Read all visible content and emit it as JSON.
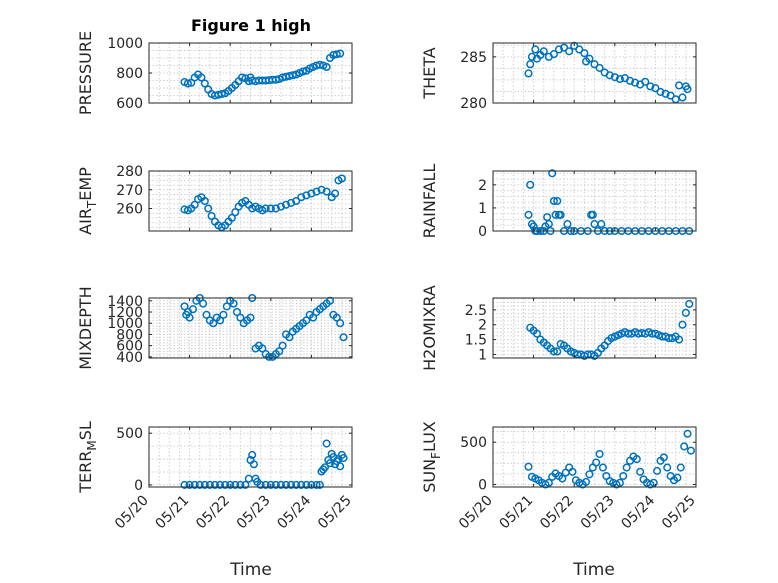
{
  "figure": {
    "title": "Figure 1 high",
    "xlabel": "Time",
    "date_ticks": [
      "05/20",
      "05/21",
      "05/22",
      "05/23",
      "05/24",
      "05/25"
    ]
  },
  "colors": {
    "series": "#0072bd",
    "axes": "#262626",
    "grid": "#d0d0d0"
  },
  "chart_data": [
    {
      "type": "scatter",
      "ylabel": "PRESSURE",
      "xlim": [
        "05/20",
        "05/25"
      ],
      "ylim": [
        600,
        1000
      ],
      "yticks": [
        600,
        800,
        1000
      ],
      "ytick_labels": [
        "600",
        "800",
        "1000"
      ],
      "grid": true,
      "show_xticklabels": false,
      "x": [
        "05/20 21:00",
        "05/20 23:00",
        "05/21 01:00",
        "05/21 03:00",
        "05/21 05:00",
        "05/21 07:00",
        "05/21 09:00",
        "05/21 11:00",
        "05/21 13:00",
        "05/21 15:00",
        "05/21 17:00",
        "05/21 19:00",
        "05/21 21:00",
        "05/21 23:00",
        "05/22 01:00",
        "05/22 03:00",
        "05/22 05:00",
        "05/22 07:00",
        "05/22 09:00",
        "05/22 11:00",
        "05/22 12:00",
        "05/22 13:00",
        "05/22 15:00",
        "05/22 17:00",
        "05/22 19:00",
        "05/22 21:00",
        "05/22 23:00",
        "05/23 01:00",
        "05/23 03:00",
        "05/23 05:00",
        "05/23 07:00",
        "05/23 09:00",
        "05/23 11:00",
        "05/23 13:00",
        "05/23 15:00",
        "05/23 17:00",
        "05/23 19:00",
        "05/23 21:00",
        "05/23 23:00",
        "05/24 01:00",
        "05/24 03:00",
        "05/24 05:00",
        "05/24 07:00",
        "05/24 09:00",
        "05/24 11:00",
        "05/24 13:00",
        "05/24 15:00",
        "05/24 17:00"
      ],
      "y": [
        740,
        730,
        735,
        770,
        790,
        770,
        730,
        690,
        660,
        650,
        655,
        660,
        665,
        680,
        700,
        720,
        745,
        770,
        765,
        745,
        770,
        750,
        745,
        750,
        750,
        750,
        752,
        755,
        755,
        760,
        770,
        775,
        780,
        785,
        790,
        800,
        810,
        815,
        830,
        840,
        850,
        855,
        850,
        840,
        900,
        920,
        925,
        930
      ]
    },
    {
      "type": "scatter",
      "ylabel": "THETA",
      "xlim": [
        "05/20",
        "05/25"
      ],
      "ylim": [
        280,
        286.5
      ],
      "yticks": [
        280,
        285
      ],
      "ytick_labels": [
        "280",
        "285"
      ],
      "grid": true,
      "show_xticklabels": false,
      "x": [
        "05/20 21:00",
        "05/20 22:00",
        "05/20 23:00",
        "05/21 01:00",
        "05/21 02:00",
        "05/21 04:00",
        "05/21 06:00",
        "05/21 09:00",
        "05/21 12:00",
        "05/21 15:00",
        "05/21 18:00",
        "05/21 21:00",
        "05/22 00:00",
        "05/22 03:00",
        "05/22 06:00",
        "05/22 07:00",
        "05/22 09:00",
        "05/22 12:00",
        "05/22 15:00",
        "05/22 18:00",
        "05/22 21:00",
        "05/23 00:00",
        "05/23 03:00",
        "05/23 06:00",
        "05/23 09:00",
        "05/23 12:00",
        "05/23 15:00",
        "05/23 18:00",
        "05/23 21:00",
        "05/24 00:00",
        "05/24 03:00",
        "05/24 06:00",
        "05/24 09:00",
        "05/24 12:00",
        "05/24 14:00",
        "05/24 16:00",
        "05/24 18:00",
        "05/24 19:00"
      ],
      "y": [
        283.2,
        284.2,
        285.0,
        285.8,
        284.8,
        285.2,
        285.6,
        285.0,
        285.3,
        285.8,
        286.0,
        285.6,
        286.2,
        285.8,
        285.4,
        284.5,
        284.8,
        284.2,
        283.8,
        283.3,
        283.0,
        282.8,
        282.6,
        282.7,
        282.4,
        282.2,
        282.0,
        282.3,
        281.8,
        281.6,
        281.2,
        281.0,
        280.8,
        280.4,
        281.9,
        280.6,
        281.8,
        281.5
      ]
    },
    {
      "type": "scatter",
      "ylabel": "AIR_TEMP",
      "ylabel_parts": [
        "AIR",
        "T",
        "EMP"
      ],
      "xlim": [
        "05/20",
        "05/25"
      ],
      "ylim": [
        248,
        280
      ],
      "yticks": [
        260,
        270,
        280
      ],
      "ytick_labels": [
        "260",
        "270",
        "280"
      ],
      "grid": true,
      "show_xticklabels": false,
      "x": [
        "05/20 21:00",
        "05/20 23:00",
        "05/21 01:00",
        "05/21 03:00",
        "05/21 05:00",
        "05/21 07:00",
        "05/21 09:00",
        "05/21 11:00",
        "05/21 13:00",
        "05/21 15:00",
        "05/21 17:00",
        "05/21 19:00",
        "05/21 21:00",
        "05/21 23:00",
        "05/22 01:00",
        "05/22 03:00",
        "05/22 05:00",
        "05/22 07:00",
        "05/22 09:00",
        "05/22 11:00",
        "05/22 13:00",
        "05/22 15:00",
        "05/22 17:00",
        "05/22 19:00",
        "05/22 21:00",
        "05/23 00:00",
        "05/23 03:00",
        "05/23 06:00",
        "05/23 09:00",
        "05/23 12:00",
        "05/23 15:00",
        "05/23 18:00",
        "05/23 21:00",
        "05/24 00:00",
        "05/24 03:00",
        "05/24 06:00",
        "05/24 09:00",
        "05/24 12:00",
        "05/24 14:00",
        "05/24 16:00",
        "05/24 18:00"
      ],
      "y": [
        259.5,
        259,
        260,
        262,
        265,
        266,
        264,
        260,
        256,
        253,
        251,
        250,
        251,
        253,
        255,
        258,
        261,
        263,
        264,
        262,
        260,
        261,
        260,
        259,
        260,
        260,
        260,
        261,
        262,
        263,
        264,
        266,
        267,
        268,
        269,
        270,
        269,
        266,
        268,
        275,
        276
      ]
    },
    {
      "type": "scatter",
      "ylabel": "RAINFALL",
      "xlim": [
        "05/20",
        "05/25"
      ],
      "ylim": [
        0,
        2.6
      ],
      "yticks": [
        0,
        1,
        2
      ],
      "ytick_labels": [
        "0",
        "1",
        "2"
      ],
      "grid": true,
      "show_xticklabels": false,
      "x": [
        "05/20 21:00",
        "05/20 22:00",
        "05/20 23:00",
        "05/21 00:00",
        "05/21 01:00",
        "05/21 02:00",
        "05/21 04:00",
        "05/21 06:00",
        "05/21 07:00",
        "05/21 08:00",
        "05/21 09:00",
        "05/21 10:00",
        "05/21 11:00",
        "05/21 12:00",
        "05/21 13:00",
        "05/21 14:00",
        "05/21 15:00",
        "05/21 16:00",
        "05/21 18:00",
        "05/21 20:00",
        "05/21 22:00",
        "05/22 00:00",
        "05/22 04:00",
        "05/22 08:00",
        "05/22 10:00",
        "05/22 11:00",
        "05/22 12:00",
        "05/22 14:00",
        "05/22 16:00",
        "05/22 18:00",
        "05/22 21:00",
        "05/23 00:00",
        "05/23 04:00",
        "05/23 08:00",
        "05/23 12:00",
        "05/23 16:00",
        "05/23 20:00",
        "05/24 00:00",
        "05/24 04:00",
        "05/24 08:00",
        "05/24 12:00",
        "05/24 16:00",
        "05/24 20:00"
      ],
      "y": [
        0.7,
        2.0,
        0.3,
        0.2,
        0.0,
        0.0,
        0.0,
        0.0,
        0.2,
        0.6,
        0.3,
        0.0,
        2.5,
        1.3,
        0.7,
        1.3,
        0.7,
        0.7,
        0.0,
        0.3,
        0.0,
        0.0,
        0.0,
        0.0,
        0.7,
        0.7,
        0.3,
        0.0,
        0.3,
        0.0,
        0.0,
        0.0,
        0.0,
        0.0,
        0.0,
        0.0,
        0.0,
        0.0,
        0.0,
        0.0,
        0.0,
        0.0,
        0.0
      ]
    },
    {
      "type": "scatter",
      "ylabel": "MIXDEPTH",
      "xlim": [
        "05/20",
        "05/25"
      ],
      "ylim": [
        380,
        1450
      ],
      "yticks": [
        400,
        600,
        800,
        1000,
        1200,
        1400
      ],
      "ytick_labels": [
        "400",
        "600",
        "800",
        "1000",
        "1200",
        "1400"
      ],
      "grid": true,
      "show_xticklabels": false,
      "x": [
        "05/20 21:00",
        "05/20 22:00",
        "05/20 23:00",
        "05/21 00:00",
        "05/21 02:00",
        "05/21 04:00",
        "05/21 06:00",
        "05/21 08:00",
        "05/21 10:00",
        "05/21 12:00",
        "05/21 14:00",
        "05/21 16:00",
        "05/21 18:00",
        "05/21 20:00",
        "05/21 22:00",
        "05/22 00:00",
        "05/22 02:00",
        "05/22 04:00",
        "05/22 06:00",
        "05/22 08:00",
        "05/22 10:00",
        "05/22 12:00",
        "05/22 13:00",
        "05/22 15:00",
        "05/22 17:00",
        "05/22 19:00",
        "05/22 21:00",
        "05/22 23:00",
        "05/23 01:00",
        "05/23 03:00",
        "05/23 05:00",
        "05/23 07:00",
        "05/23 09:00",
        "05/23 11:00",
        "05/23 13:00",
        "05/23 15:00",
        "05/23 17:00",
        "05/23 19:00",
        "05/23 21:00",
        "05/23 23:00",
        "05/24 01:00",
        "05/24 03:00",
        "05/24 05:00",
        "05/24 07:00",
        "05/24 09:00",
        "05/24 11:00",
        "05/24 13:00",
        "05/24 15:00",
        "05/24 17:00",
        "05/24 19:00"
      ],
      "y": [
        1300,
        1150,
        1200,
        1100,
        1250,
        1400,
        1450,
        1350,
        1150,
        1050,
        1000,
        1100,
        1050,
        1150,
        1300,
        1400,
        1350,
        1200,
        1100,
        1000,
        1050,
        1100,
        1450,
        550,
        600,
        550,
        450,
        400,
        400,
        450,
        500,
        600,
        800,
        750,
        850,
        900,
        950,
        1000,
        1050,
        1150,
        1100,
        1200,
        1250,
        1300,
        1350,
        1400,
        1150,
        1100,
        1000,
        750
      ]
    },
    {
      "type": "scatter",
      "ylabel": "H2OMIXRA",
      "xlim": [
        "05/20",
        "05/25"
      ],
      "ylim": [
        0.88,
        2.9
      ],
      "yticks": [
        1,
        1.5,
        2,
        2.5
      ],
      "ytick_labels": [
        "1",
        "1.5",
        "2",
        "2.5"
      ],
      "grid": true,
      "show_xticklabels": false,
      "x": [
        "05/20 22:00",
        "05/21 00:00",
        "05/21 02:00",
        "05/21 04:00",
        "05/21 06:00",
        "05/21 08:00",
        "05/21 10:00",
        "05/21 12:00",
        "05/21 14:00",
        "05/21 16:00",
        "05/21 18:00",
        "05/21 20:00",
        "05/21 22:00",
        "05/22 00:00",
        "05/22 02:00",
        "05/22 04:00",
        "05/22 06:00",
        "05/22 08:00",
        "05/22 10:00",
        "05/22 12:00",
        "05/22 14:00",
        "05/22 16:00",
        "05/22 18:00",
        "05/22 20:00",
        "05/22 22:00",
        "05/23 00:00",
        "05/23 02:00",
        "05/23 04:00",
        "05/23 06:00",
        "05/23 08:00",
        "05/23 10:00",
        "05/23 12:00",
        "05/23 14:00",
        "05/23 16:00",
        "05/23 18:00",
        "05/23 20:00",
        "05/23 22:00",
        "05/24 00:00",
        "05/24 02:00",
        "05/24 04:00",
        "05/24 06:00",
        "05/24 08:00",
        "05/24 10:00",
        "05/24 12:00",
        "05/24 14:00",
        "05/24 16:00",
        "05/24 18:00",
        "05/24 20:00"
      ],
      "y": [
        1.9,
        1.8,
        1.7,
        1.5,
        1.4,
        1.3,
        1.2,
        1.1,
        1.1,
        1.35,
        1.3,
        1.2,
        1.1,
        1.05,
        1.0,
        1.0,
        0.95,
        1.0,
        1.0,
        0.95,
        1.05,
        1.2,
        1.3,
        1.45,
        1.55,
        1.6,
        1.65,
        1.7,
        1.75,
        1.7,
        1.7,
        1.75,
        1.7,
        1.72,
        1.7,
        1.75,
        1.7,
        1.7,
        1.65,
        1.6,
        1.6,
        1.55,
        1.55,
        1.6,
        1.5,
        2.0,
        2.4,
        2.7
      ]
    },
    {
      "type": "scatter",
      "ylabel": "TERR_MSL",
      "ylabel_parts": [
        "TERR",
        "M",
        "SL"
      ],
      "xlim": [
        "05/20",
        "05/25"
      ],
      "ylim": [
        -20,
        560
      ],
      "yticks": [
        0,
        500
      ],
      "ytick_labels": [
        "0",
        "500"
      ],
      "grid": true,
      "show_xticklabels": true,
      "x": [
        "05/20 21:00",
        "05/21 00:00",
        "05/21 03:00",
        "05/21 06:00",
        "05/21 09:00",
        "05/21 12:00",
        "05/21 15:00",
        "05/21 18:00",
        "05/21 21:00",
        "05/22 00:00",
        "05/22 03:00",
        "05/22 06:00",
        "05/22 09:00",
        "05/22 11:00",
        "05/22 12:00",
        "05/22 13:00",
        "05/22 14:00",
        "05/22 15:00",
        "05/22 16:00",
        "05/22 18:00",
        "05/22 21:00",
        "05/23 00:00",
        "05/23 03:00",
        "05/23 06:00",
        "05/23 09:00",
        "05/23 12:00",
        "05/23 15:00",
        "05/23 18:00",
        "05/23 21:00",
        "05/24 00:00",
        "05/24 03:00",
        "05/24 05:00",
        "05/24 06:00",
        "05/24 07:00",
        "05/24 08:00",
        "05/24 09:00",
        "05/24 10:00",
        "05/24 11:00",
        "05/24 12:00",
        "05/24 13:00",
        "05/24 14:00",
        "05/24 15:00",
        "05/24 16:00",
        "05/24 17:00",
        "05/24 18:00",
        "05/24 19:00"
      ],
      "y": [
        0,
        0,
        0,
        0,
        0,
        0,
        0,
        0,
        0,
        0,
        0,
        0,
        0,
        60,
        240,
        290,
        200,
        60,
        30,
        0,
        0,
        0,
        0,
        0,
        0,
        0,
        0,
        0,
        0,
        0,
        0,
        0,
        130,
        150,
        170,
        400,
        240,
        210,
        300,
        270,
        200,
        230,
        250,
        180,
        290,
        260
      ]
    },
    {
      "type": "scatter",
      "ylabel": "SUN_FLUX",
      "ylabel_parts": [
        "SUN",
        "F",
        "LUX"
      ],
      "xlim": [
        "05/20",
        "05/25"
      ],
      "ylim": [
        -30,
        680
      ],
      "yticks": [
        0,
        500
      ],
      "ytick_labels": [
        "0",
        "500"
      ],
      "grid": true,
      "show_xticklabels": true,
      "x": [
        "05/20 21:00",
        "05/20 23:00",
        "05/21 01:00",
        "05/21 03:00",
        "05/21 05:00",
        "05/21 07:00",
        "05/21 09:00",
        "05/21 11:00",
        "05/21 13:00",
        "05/21 15:00",
        "05/21 17:00",
        "05/21 19:00",
        "05/21 21:00",
        "05/21 23:00",
        "05/22 01:00",
        "05/22 03:00",
        "05/22 05:00",
        "05/22 07:00",
        "05/22 09:00",
        "05/22 11:00",
        "05/22 13:00",
        "05/22 15:00",
        "05/22 17:00",
        "05/22 19:00",
        "05/22 21:00",
        "05/22 23:00",
        "05/23 01:00",
        "05/23 03:00",
        "05/23 05:00",
        "05/23 07:00",
        "05/23 09:00",
        "05/23 11:00",
        "05/23 13:00",
        "05/23 15:00",
        "05/23 17:00",
        "05/23 19:00",
        "05/23 21:00",
        "05/23 23:00",
        "05/24 01:00",
        "05/24 03:00",
        "05/24 05:00",
        "05/24 07:00",
        "05/24 09:00",
        "05/24 11:00",
        "05/24 13:00",
        "05/24 15:00",
        "05/24 17:00",
        "05/24 19:00",
        "05/24 21:00"
      ],
      "y": [
        210,
        90,
        70,
        50,
        20,
        0,
        20,
        90,
        130,
        100,
        70,
        140,
        200,
        150,
        50,
        20,
        0,
        30,
        120,
        200,
        260,
        360,
        200,
        100,
        40,
        20,
        0,
        20,
        100,
        200,
        280,
        330,
        300,
        150,
        60,
        20,
        0,
        20,
        160,
        280,
        320,
        200,
        100,
        50,
        80,
        200,
        450,
        600,
        400
      ]
    }
  ]
}
